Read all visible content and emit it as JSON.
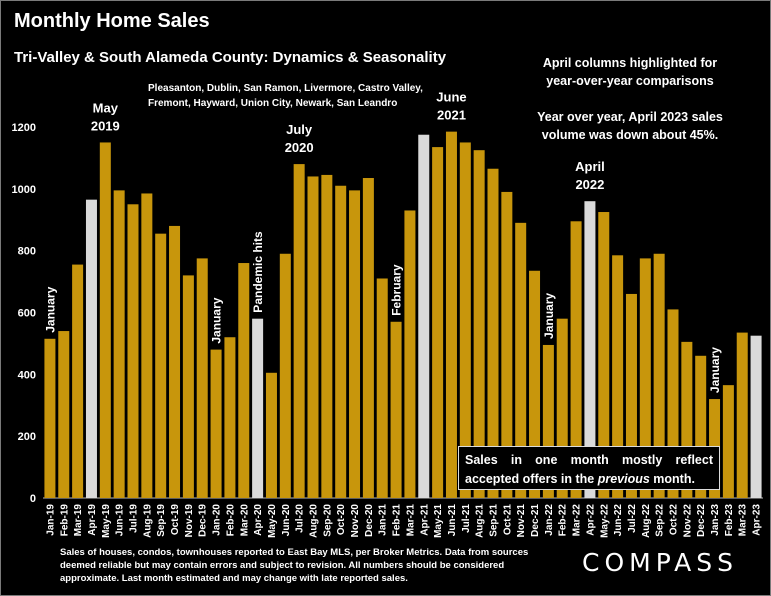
{
  "title": "Monthly Home Sales",
  "subtitle": "Tri-Valley & South Alameda County: Dynamics & Seasonality",
  "cities_line1": "Pleasanton, Dublin, San Ramon, Livermore, Castro Valley,",
  "cities_line2": "Fremont, Hayward, Union City, Newark, San Leandro",
  "note_highlight_line1": "April columns highlighted for",
  "note_highlight_line2": "year-over-year comparisons",
  "note_yoy_line1": "Year over year, April 2023 sales",
  "note_yoy_line2": "volume was down about 45%.",
  "box_text_pre": "Sales in one month mostly reflect accepted offers in the ",
  "box_text_em": "previous",
  "box_text_post": " month.",
  "footer_text": "Sales of houses, condos, townhouses reported to East Bay MLS, per Broker Metrics. Data from sources deemed reliable but may contain errors and subject to revision. All numbers should be considered approximate.  Last month estimated and may change with late reported sales.",
  "logo": "COMPASS",
  "colors": {
    "bar": "#c8960c",
    "highlight": "#dadada",
    "background": "#000000",
    "text": "#ffffff"
  },
  "chart_data": {
    "type": "bar",
    "ylim": [
      0,
      1200
    ],
    "yticks": [
      "0",
      "200",
      "400",
      "600",
      "800",
      "1000",
      "1200"
    ],
    "grid": false,
    "categories": [
      "Jan-19",
      "Feb-19",
      "Mar-19",
      "Apr-19",
      "May-19",
      "Jun-19",
      "Jul-19",
      "Aug-19",
      "Sep-19",
      "Oct-19",
      "Nov-19",
      "Dec-19",
      "Jan-20",
      "Feb-20",
      "Mar-20",
      "Apr-20",
      "May-20",
      "Jun-20",
      "Jul-20",
      "Aug-20",
      "Sep-20",
      "Oct-20",
      "Nov-20",
      "Dec-20",
      "Jan-21",
      "Feb-21",
      "Mar-21",
      "Apr-21",
      "May-21",
      "Jun-21",
      "Jul-21",
      "Aug-21",
      "Sep-21",
      "Oct-21",
      "Nov-21",
      "Dec-21",
      "Jan-22",
      "Feb-22",
      "Mar-22",
      "Apr-22",
      "May-22",
      "Jun-22",
      "Jul-22",
      "Aug-22",
      "Sep-22",
      "Oct-22",
      "Nov-22",
      "Dec-22",
      "Jan-23",
      "Feb-23",
      "Mar-23",
      "Apr-23"
    ],
    "values": [
      515,
      540,
      755,
      965,
      1150,
      995,
      950,
      985,
      855,
      880,
      720,
      775,
      480,
      520,
      760,
      580,
      405,
      790,
      1080,
      1040,
      1045,
      1010,
      995,
      1035,
      710,
      570,
      930,
      1175,
      1135,
      1185,
      1150,
      1125,
      1065,
      990,
      890,
      735,
      495,
      580,
      895,
      960,
      925,
      785,
      660,
      775,
      790,
      610,
      505,
      460,
      320,
      365,
      535,
      525
    ],
    "highlighted": [
      "Apr-19",
      "Apr-20",
      "Apr-21",
      "Apr-22",
      "Apr-23"
    ],
    "annotations": [
      {
        "category": "Jan-19",
        "text": "January",
        "style": "vertical"
      },
      {
        "category": "May-19",
        "text": "May\n2019",
        "style": "above"
      },
      {
        "category": "Jan-20",
        "text": "January",
        "style": "vertical"
      },
      {
        "category": "Apr-20",
        "text": "Pandemic hits",
        "style": "vertical"
      },
      {
        "category": "Jul-20",
        "text": "July\n2020",
        "style": "above"
      },
      {
        "category": "Feb-21",
        "text": "February",
        "style": "vertical"
      },
      {
        "category": "Jun-21",
        "text": "June\n2021",
        "style": "above"
      },
      {
        "category": "Jan-22",
        "text": "January",
        "style": "vertical"
      },
      {
        "category": "Apr-22",
        "text": "April\n2022",
        "style": "above"
      },
      {
        "category": "Jan-23",
        "text": "January",
        "style": "vertical"
      }
    ]
  }
}
